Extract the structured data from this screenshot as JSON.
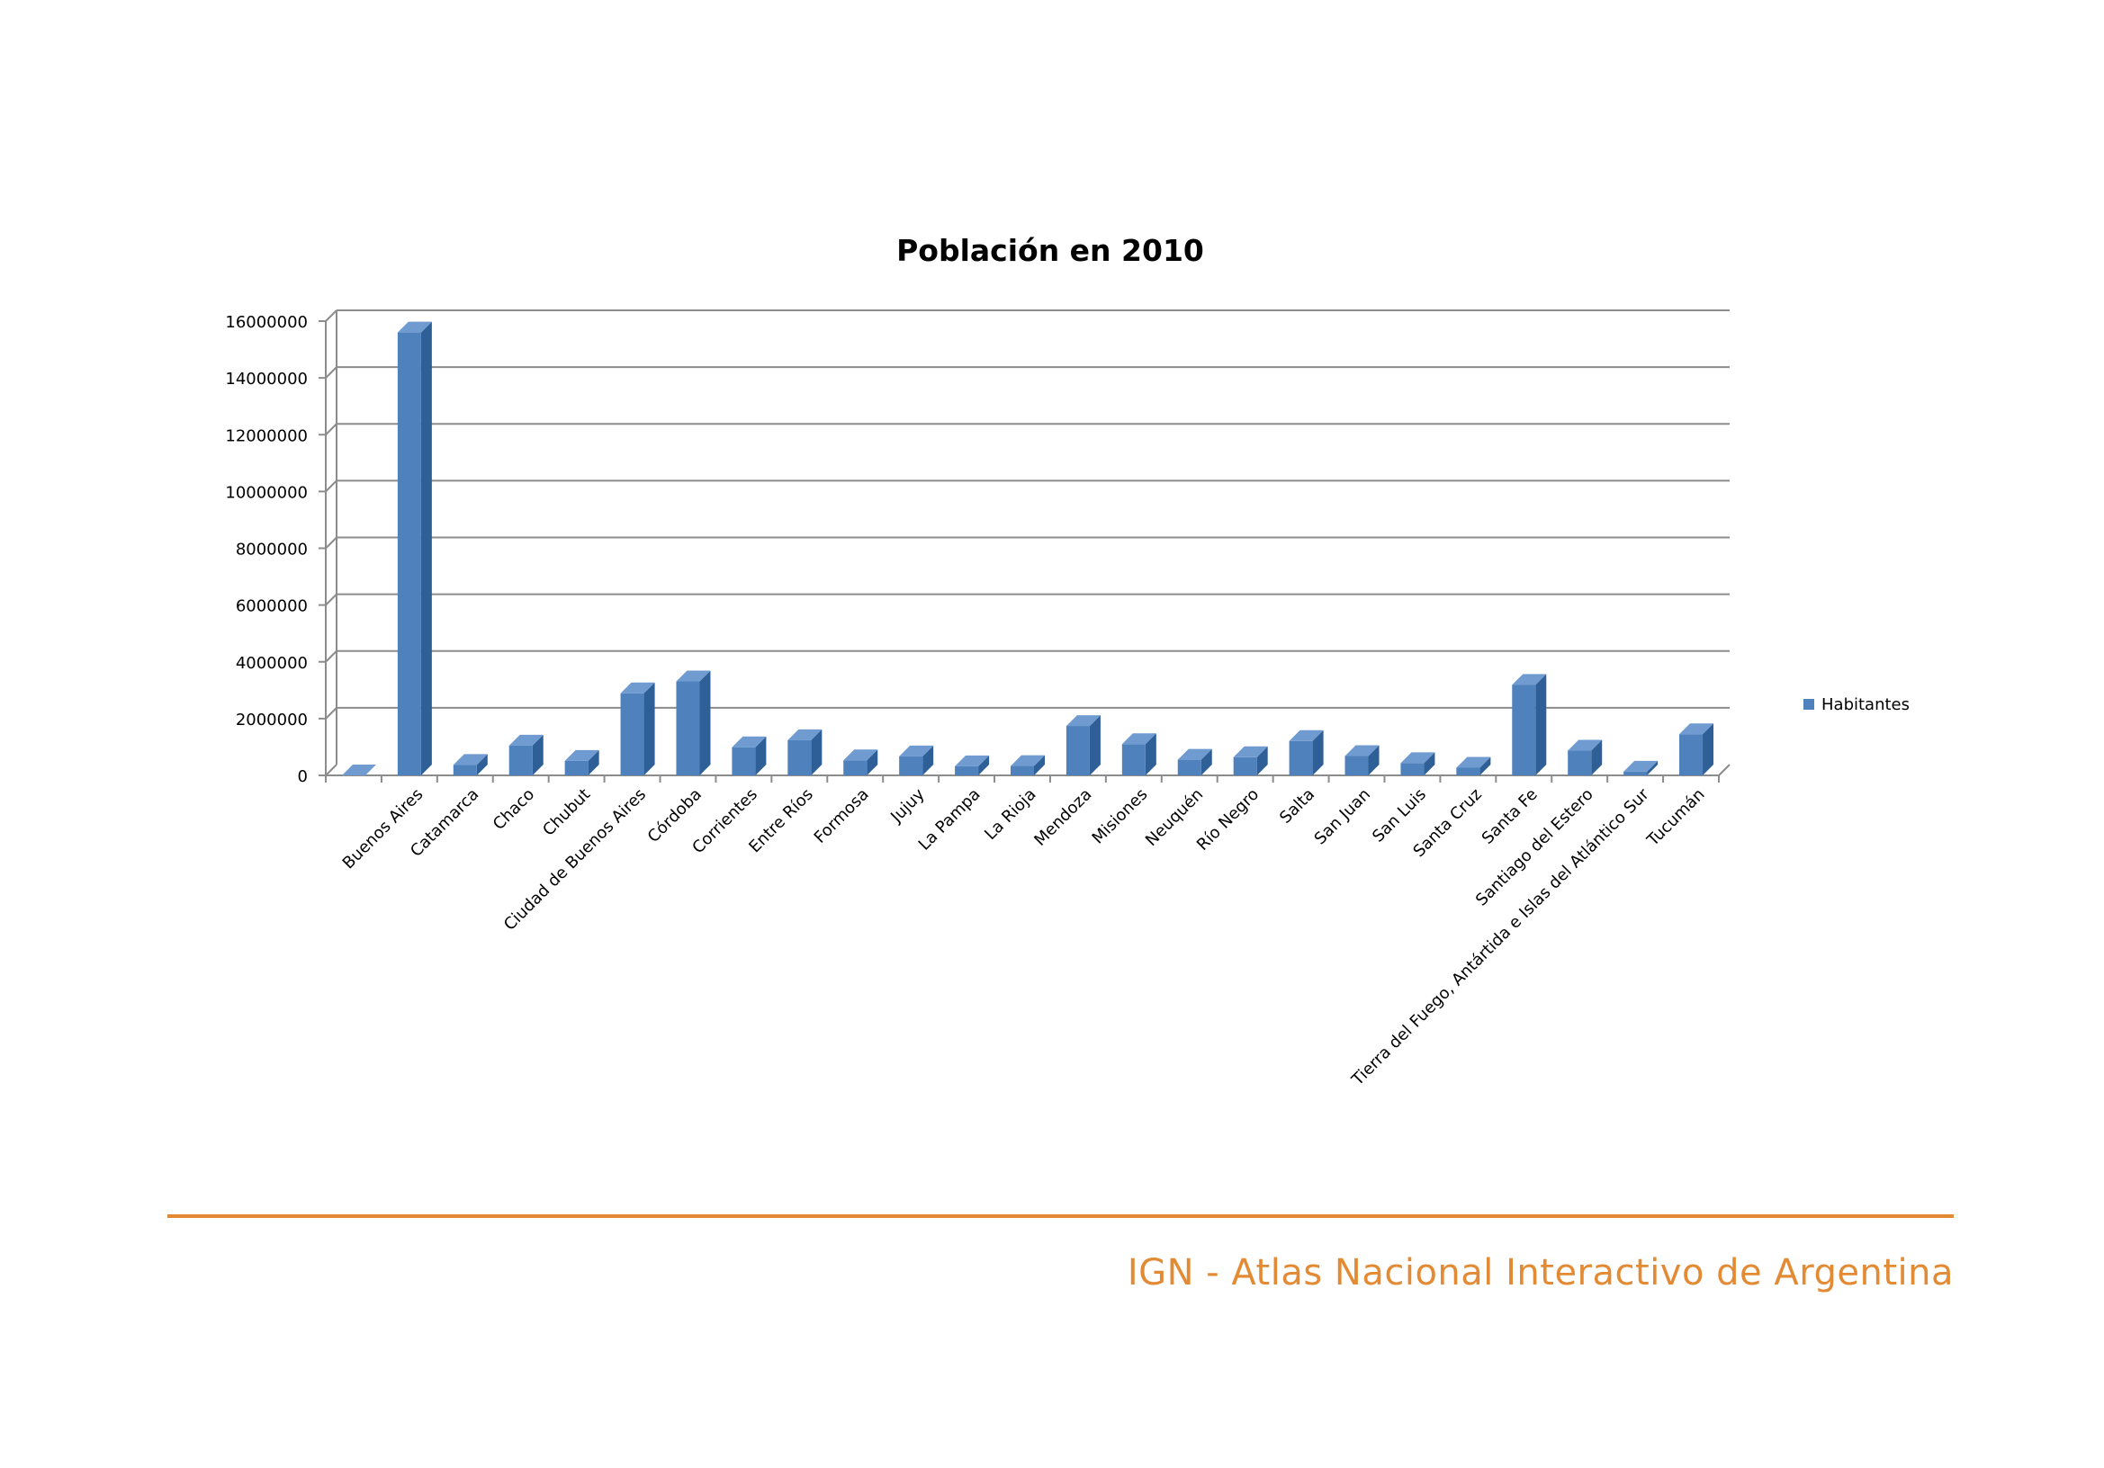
{
  "chart_data": {
    "type": "bar",
    "style": "3d-column",
    "title": "Población en 2010",
    "xlabel": "",
    "ylabel": "",
    "ylim": [
      0,
      16000000
    ],
    "yticks": [
      "0",
      "2000000",
      "4000000",
      "6000000",
      "8000000",
      "10000000",
      "12000000",
      "14000000",
      "16000000"
    ],
    "grid": true,
    "legend_position": "right",
    "categories": [
      "",
      "Buenos Aires",
      "Catamarca",
      "Chaco",
      "Chubut",
      "Ciudad de Buenos Aires",
      "Córdoba",
      "Corrientes",
      "Entre Ríos",
      "Formosa",
      "Jujuy",
      "La Pampa",
      "La Rioja",
      "Mendoza",
      "Misiones",
      "Neuquén",
      "Río Negro",
      "Salta",
      "San Juan",
      "San Luis",
      "Santa Cruz",
      "Santa Fe",
      "Santiago del Estero",
      "Tierra del Fuego, Antártida e Islas del Atlántico Sur",
      "Tucumán"
    ],
    "series": [
      {
        "name": "Habitantes",
        "color": "#4f81bd",
        "values": [
          0,
          15600000,
          370000,
          1050000,
          510000,
          2890000,
          3310000,
          990000,
          1240000,
          530000,
          670000,
          320000,
          330000,
          1740000,
          1100000,
          550000,
          640000,
          1210000,
          680000,
          430000,
          270000,
          3190000,
          870000,
          130000,
          1450000
        ]
      }
    ]
  },
  "colors": {
    "bar_front": "#4f81bd",
    "bar_side": "#2f5f97",
    "bar_top": "#6f9bd1",
    "grid": "#8c8c8c",
    "footer_accent": "#e38b34"
  },
  "footer": {
    "text": "IGN - Atlas Nacional Interactivo de Argentina"
  }
}
